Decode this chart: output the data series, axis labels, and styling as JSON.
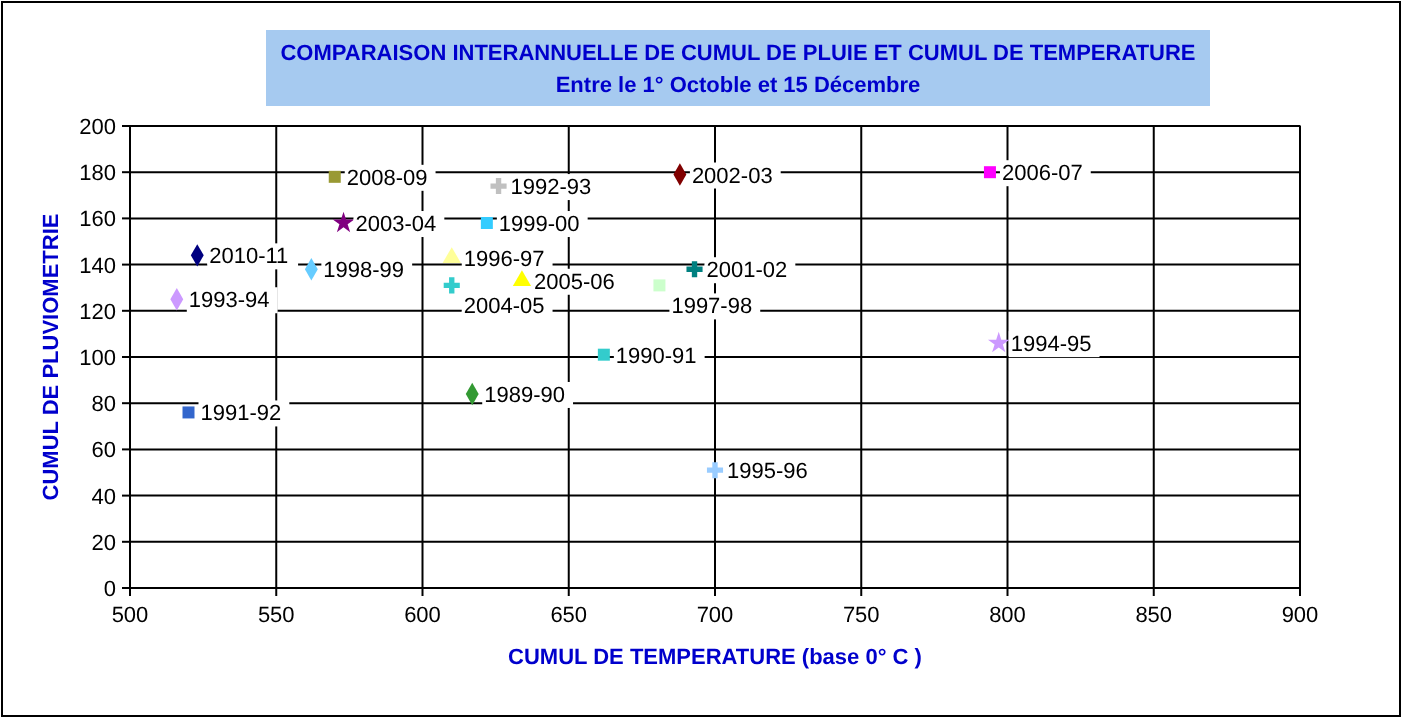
{
  "chart_data": {
    "type": "scatter",
    "title": "COMPARAISON INTERANNUELLE DE CUMUL DE PLUIE ET CUMUL DE TEMPERATURE",
    "subtitle": "Entre le 1° Octoble et 15 Décembre",
    "xlabel": "CUMUL DE TEMPERATURE (base 0° C )",
    "ylabel": "CUMUL DE PLUVIOMETRIE",
    "xlim": [
      500,
      900
    ],
    "xticks": [
      500,
      550,
      600,
      650,
      700,
      750,
      800,
      850,
      900
    ],
    "ylim": [
      0,
      200
    ],
    "yticks": [
      0,
      20,
      40,
      60,
      80,
      100,
      120,
      140,
      160,
      180,
      200
    ],
    "grid": true,
    "series": [
      {
        "name": "2010-11",
        "color": "#000080",
        "marker": "diamond",
        "x": [
          523
        ],
        "values": [
          144
        ]
      },
      {
        "name": "1993-94",
        "color": "#cc99ff",
        "marker": "diamond",
        "x": [
          516
        ],
        "values": [
          125
        ]
      },
      {
        "name": "2008-09",
        "color": "#999933",
        "marker": "square",
        "x": [
          570
        ],
        "values": [
          178
        ]
      },
      {
        "name": "2003-04",
        "color": "#800080",
        "marker": "star",
        "x": [
          573
        ],
        "values": [
          158
        ]
      },
      {
        "name": "1998-99",
        "color": "#66ccff",
        "marker": "diamond",
        "x": [
          562
        ],
        "values": [
          138
        ]
      },
      {
        "name": "1992-93",
        "color": "#c0c0c0",
        "marker": "cross",
        "x": [
          626
        ],
        "values": [
          174
        ]
      },
      {
        "name": "1999-00",
        "color": "#33ccff",
        "marker": "square",
        "x": [
          622
        ],
        "values": [
          158
        ]
      },
      {
        "name": "1996-97",
        "color": "#ffff99",
        "marker": "triangle",
        "x": [
          610
        ],
        "values": [
          143
        ]
      },
      {
        "name": "2004-05",
        "color": "#33cccc",
        "marker": "cross",
        "x": [
          610
        ],
        "values": [
          131
        ]
      },
      {
        "name": "2005-06",
        "color": "#ffff00",
        "marker": "triangle",
        "x": [
          634
        ],
        "values": [
          133
        ]
      },
      {
        "name": "1997-98",
        "color": "#ccffcc",
        "marker": "square",
        "x": [
          681
        ],
        "values": [
          131
        ]
      },
      {
        "name": "2001-02",
        "color": "#008080",
        "marker": "cross",
        "x": [
          693
        ],
        "values": [
          138
        ]
      },
      {
        "name": "1990-91",
        "color": "#33cccc",
        "marker": "square",
        "x": [
          662
        ],
        "values": [
          101
        ]
      },
      {
        "name": "1989-90",
        "color": "#339933",
        "marker": "diamond",
        "x": [
          617
        ],
        "values": [
          84
        ]
      },
      {
        "name": "1995-96",
        "color": "#99ccff",
        "marker": "cross",
        "x": [
          700
        ],
        "values": [
          51
        ]
      },
      {
        "name": "2002-03",
        "color": "#800000",
        "marker": "diamond",
        "x": [
          688
        ],
        "values": [
          179
        ]
      },
      {
        "name": "2006-07",
        "color": "#ff00ff",
        "marker": "square",
        "x": [
          794
        ],
        "values": [
          180
        ]
      },
      {
        "name": "1994-95",
        "color": "#cc99ff",
        "marker": "star",
        "x": [
          797
        ],
        "values": [
          106
        ]
      },
      {
        "name": "1991-92",
        "color": "#3366cc",
        "marker": "square",
        "x": [
          520
        ],
        "values": [
          76
        ]
      }
    ]
  }
}
